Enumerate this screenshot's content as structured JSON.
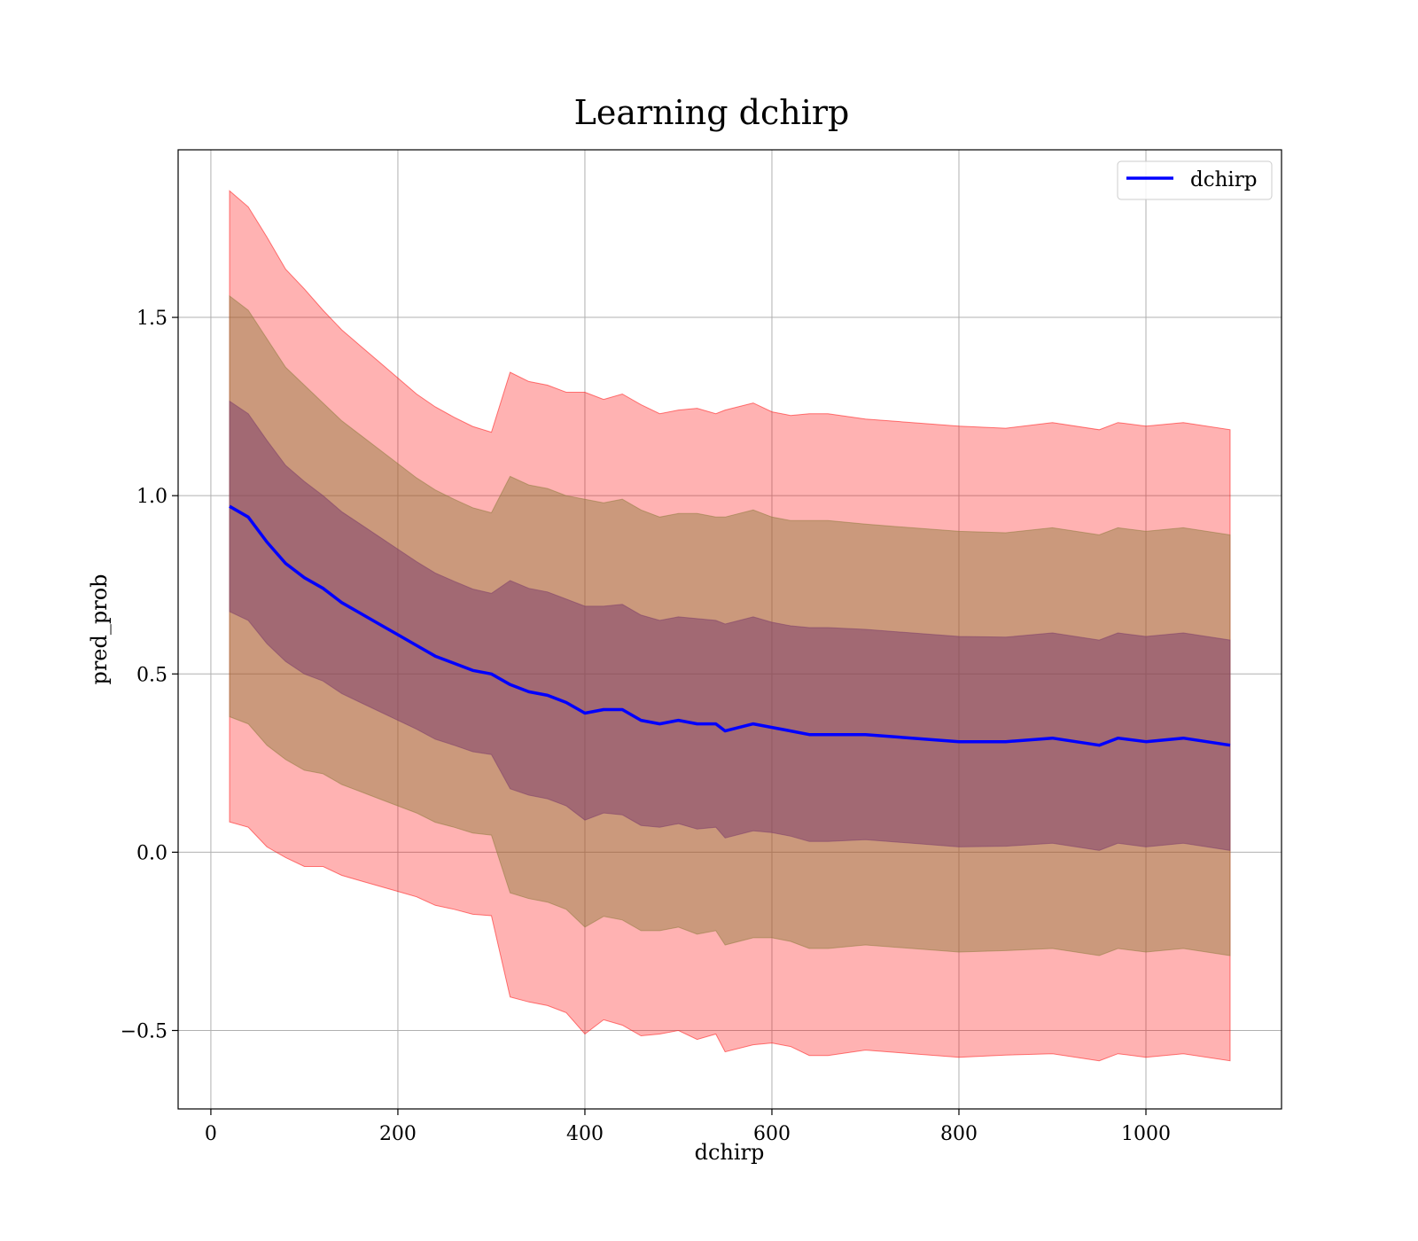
{
  "chart_data": {
    "type": "line",
    "title": "Learning dchirp",
    "xlabel": "dchirp",
    "ylabel": "pred_prob",
    "xlim": [
      -35,
      1145
    ],
    "ylim": [
      -0.72,
      1.97
    ],
    "xticks": [
      0,
      200,
      400,
      600,
      800,
      1000
    ],
    "xtick_labels": [
      "0",
      "200",
      "400",
      "600",
      "800",
      "1000"
    ],
    "yticks": [
      -0.5,
      0.0,
      0.5,
      1.0,
      1.5
    ],
    "ytick_labels": [
      "−0.5",
      "0.0",
      "0.5",
      "1.0",
      "1.5"
    ],
    "grid": true,
    "legend": {
      "position": "top-right",
      "entries": [
        "dchirp"
      ]
    },
    "colors": {
      "line": "#0000ff",
      "band_3sigma": "#ff0000",
      "band_2sigma": "#8b7a3a",
      "band_1sigma": "#7a3a6a"
    },
    "band_half_widths_in_std": [
      3,
      2,
      1
    ],
    "series": [
      {
        "name": "dchirp",
        "x": [
          20,
          40,
          60,
          80,
          100,
          120,
          140,
          160,
          180,
          200,
          220,
          240,
          260,
          280,
          300,
          320,
          340,
          360,
          380,
          400,
          420,
          440,
          460,
          480,
          500,
          520,
          540,
          550,
          580,
          600,
          620,
          640,
          660,
          700,
          750,
          800,
          850,
          900,
          950,
          970,
          1000,
          1040,
          1090
        ],
        "mean": [
          0.97,
          0.94,
          0.87,
          0.81,
          0.77,
          0.74,
          0.7,
          0.67,
          0.64,
          0.61,
          0.58,
          0.55,
          0.53,
          0.51,
          0.5,
          0.47,
          0.45,
          0.44,
          0.42,
          0.39,
          0.4,
          0.4,
          0.37,
          0.36,
          0.37,
          0.36,
          0.36,
          0.34,
          0.36,
          0.35,
          0.34,
          0.33,
          0.33,
          0.33,
          0.32,
          0.31,
          0.31,
          0.32,
          0.3,
          0.32,
          0.31,
          0.32,
          0.3
        ],
        "std": [
          0.295,
          0.29,
          0.285,
          0.275,
          0.27,
          0.26,
          0.255,
          0.25,
          0.245,
          0.24,
          0.235,
          0.233,
          0.23,
          0.228,
          0.226,
          0.292,
          0.29,
          0.29,
          0.29,
          0.3,
          0.29,
          0.295,
          0.295,
          0.29,
          0.29,
          0.295,
          0.29,
          0.3,
          0.3,
          0.295,
          0.295,
          0.3,
          0.3,
          0.295,
          0.295,
          0.295,
          0.293,
          0.295,
          0.295,
          0.295,
          0.295,
          0.295,
          0.295
        ]
      }
    ]
  }
}
